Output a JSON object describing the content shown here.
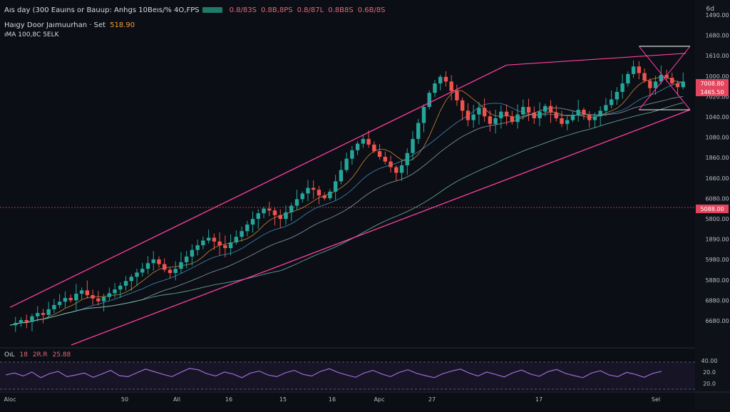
{
  "header": {
    "line1_title": "Aıs day (300 Eauıns or Bauup: Anhgs 10Beıs/% 4O,FPS",
    "line1_values": [
      "0.8/83S",
      "0.8B,8PS",
      "0.8/87L",
      "0.8B8S",
      "0.6B/8S"
    ],
    "line2_name": "Haıgy Door Jaımuurhan · Set",
    "line2_value": "518.90",
    "line3_text": "ıMA 100,8C 5ELK"
  },
  "corner_label": "6d",
  "indicator": {
    "label": "OıL",
    "values": [
      "18",
      "2R.R",
      "25.88"
    ]
  },
  "colors": {
    "background": "#0b0e14",
    "up": "#26a69a",
    "down": "#ef5350",
    "pattern": "#ff3fa4",
    "oscillator": "#9c6bd6",
    "price_tag": "#e4455e"
  },
  "chart_data": {
    "type": "candlestick",
    "price_axis_labels": [
      "1490.00",
      "1680.00",
      "1610.00",
      "1000.00",
      "7020.00",
      "1040.00",
      "1080.00",
      "1860.00",
      "1660.00",
      "6080.00",
      "5800.00",
      "1890.00",
      "5980.00",
      "5880.00",
      "6880.00",
      "6680.00"
    ],
    "price_tags": [
      "7008.80",
      "1465.50",
      "5088.00"
    ],
    "x_axis_labels": [
      "Aloc",
      "50",
      "All",
      "16",
      "15",
      "16",
      "Apc",
      "27",
      "17",
      "Sel"
    ],
    "indicator_axis_labels": [
      "40.00",
      "20.0",
      "20.0"
    ],
    "ylim": [
      5000,
      12000
    ],
    "price_series": [
      5420,
      5470,
      5530,
      5490,
      5610,
      5680,
      5640,
      5760,
      5850,
      5920,
      6000,
      5950,
      6090,
      6160,
      6060,
      5990,
      5930,
      6020,
      6100,
      6180,
      6260,
      6360,
      6450,
      6540,
      6620,
      6740,
      6820,
      6720,
      6600,
      6530,
      6620,
      6760,
      6880,
      7020,
      7120,
      7220,
      7280,
      7200,
      7120,
      7060,
      7180,
      7300,
      7420,
      7560,
      7680,
      7800,
      7900,
      7860,
      7760,
      7680,
      7820,
      7960,
      8100,
      8220,
      8340,
      8300,
      8180,
      8120,
      8260,
      8480,
      8720,
      8960,
      9140,
      9280,
      9380,
      9260,
      9120,
      9000,
      8900,
      8780,
      8660,
      8820,
      9080,
      9380,
      9720,
      10060,
      10360,
      10560,
      10700,
      10600,
      10400,
      10200,
      9980,
      9780,
      9900,
      10040,
      9860,
      9700,
      9820,
      9960,
      9860,
      9740,
      9900,
      10060,
      9940,
      9820,
      9960,
      10080,
      9940,
      9820,
      9700,
      9780,
      9880,
      10000,
      9900,
      9780,
      9860,
      9980,
      10100,
      10220,
      10380,
      10560,
      10760,
      10920,
      10780,
      10620,
      10460,
      10600,
      10740,
      10680,
      10560,
      10480,
      10600
    ],
    "moving_average_periods": [
      7,
      14,
      25,
      50
    ],
    "oscillator_values": [
      52,
      58,
      49,
      61,
      44,
      56,
      63,
      47,
      52,
      58,
      45,
      55,
      66,
      50,
      47,
      59,
      70,
      62,
      54,
      47,
      60,
      72,
      68,
      56,
      49,
      61,
      55,
      44,
      58,
      64,
      52,
      47,
      59,
      66,
      54,
      49,
      63,
      71,
      60,
      52,
      45,
      58,
      66,
      55,
      47,
      60,
      68,
      57,
      50,
      44,
      56,
      64,
      70,
      58,
      49,
      61,
      54,
      46,
      59,
      67,
      55,
      48,
      62,
      69,
      57,
      50,
      44,
      58,
      65,
      52,
      47,
      60,
      54,
      45,
      57,
      63
    ],
    "pattern": {
      "type": "triangle",
      "apex": [
        90,
        10950
      ],
      "start_index": 0,
      "support_start": 5000,
      "support_end": 10000
    },
    "grid": false,
    "legend": "top-left"
  }
}
